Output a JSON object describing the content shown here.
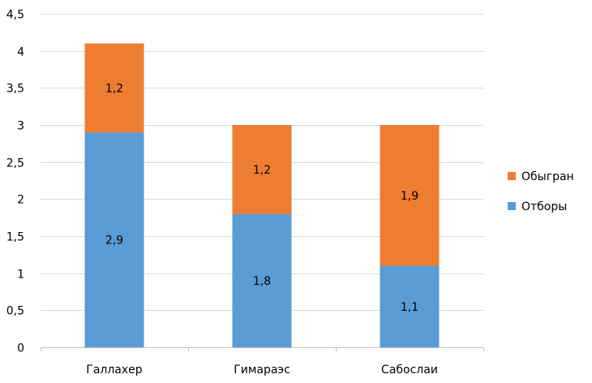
{
  "chart_data": {
    "type": "bar",
    "stacked": true,
    "title": "",
    "xlabel": "",
    "ylabel": "",
    "categories": [
      "Галлахер",
      "Гимараэс",
      "Сабослаи"
    ],
    "series": [
      {
        "name": "Отборы",
        "values": [
          2.9,
          1.8,
          1.1
        ],
        "labels": [
          "2,9",
          "1,8",
          "1,1"
        ],
        "color": "#5B9BD5"
      },
      {
        "name": "Обыгран",
        "values": [
          1.2,
          1.2,
          1.9
        ],
        "labels": [
          "1,2",
          "1,2",
          "1,9"
        ],
        "color": "#ED7D31"
      }
    ],
    "ylim": [
      0,
      4.5
    ],
    "yticks": [
      0,
      0.5,
      1,
      1.5,
      2,
      2.5,
      3,
      3.5,
      4,
      4.5
    ],
    "ytick_labels": [
      "0",
      "0,5",
      "1",
      "1,5",
      "2",
      "2,5",
      "3",
      "3,5",
      "4",
      "4,5"
    ],
    "grid": true,
    "legend_position": "right",
    "colors": {
      "grid": "#D9D9D9",
      "axis": "#BFBFBF"
    }
  }
}
